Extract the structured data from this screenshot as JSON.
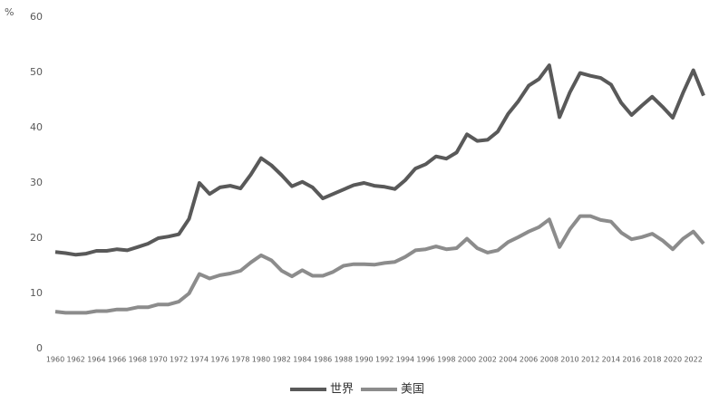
{
  "chart_data": {
    "type": "line",
    "y_unit": "%",
    "x": [
      1960,
      1961,
      1962,
      1963,
      1964,
      1965,
      1966,
      1967,
      1968,
      1969,
      1970,
      1971,
      1972,
      1973,
      1974,
      1975,
      1976,
      1977,
      1978,
      1979,
      1980,
      1981,
      1982,
      1983,
      1984,
      1985,
      1986,
      1987,
      1988,
      1989,
      1990,
      1991,
      1992,
      1993,
      1994,
      1995,
      1996,
      1997,
      1998,
      1999,
      2000,
      2001,
      2002,
      2003,
      2004,
      2005,
      2006,
      2007,
      2008,
      2009,
      2010,
      2011,
      2012,
      2013,
      2014,
      2015,
      2016,
      2017,
      2018,
      2019,
      2020,
      2021,
      2022,
      2023
    ],
    "series": [
      {
        "name": "世界",
        "color": "#595959",
        "values": [
          17.5,
          17.3,
          17.0,
          17.2,
          17.7,
          17.7,
          18.0,
          17.8,
          18.4,
          19.0,
          20.0,
          20.3,
          20.7,
          23.5,
          30.0,
          28.0,
          29.2,
          29.5,
          29.0,
          31.5,
          34.5,
          33.2,
          31.4,
          29.4,
          30.2,
          29.2,
          27.2,
          28.0,
          28.8,
          29.6,
          30.0,
          29.5,
          29.3,
          28.9,
          30.5,
          32.6,
          33.4,
          34.8,
          34.4,
          35.5,
          38.8,
          37.6,
          37.8,
          39.3,
          42.5,
          44.8,
          47.6,
          48.8,
          51.3,
          41.9,
          46.4,
          49.9,
          49.4,
          49.0,
          47.8,
          44.5,
          42.3,
          44.0,
          45.6,
          43.8,
          41.8,
          46.3,
          50.4,
          45.8
        ]
      },
      {
        "name": "美国",
        "color": "#8c8c8c",
        "values": [
          6.7,
          6.5,
          6.5,
          6.5,
          6.8,
          6.8,
          7.1,
          7.1,
          7.5,
          7.5,
          8.0,
          8.0,
          8.5,
          10.0,
          13.5,
          12.7,
          13.3,
          13.6,
          14.1,
          15.6,
          16.9,
          16.0,
          14.1,
          13.1,
          14.2,
          13.2,
          13.2,
          13.9,
          15.0,
          15.3,
          15.3,
          15.2,
          15.5,
          15.7,
          16.6,
          17.8,
          18.0,
          18.5,
          18.0,
          18.2,
          19.9,
          18.2,
          17.4,
          17.8,
          19.3,
          20.2,
          21.2,
          22.0,
          23.4,
          18.4,
          21.6,
          24.0,
          24.0,
          23.3,
          23.0,
          21.0,
          19.8,
          20.2,
          20.8,
          19.6,
          18.0,
          19.9,
          21.2,
          19.0
        ]
      }
    ],
    "xlim": [
      1960,
      2023
    ],
    "xticks": [
      1960,
      1962,
      1964,
      1966,
      1968,
      1970,
      1972,
      1974,
      1976,
      1978,
      1980,
      1982,
      1984,
      1986,
      1988,
      1990,
      1992,
      1994,
      1996,
      1998,
      2000,
      2002,
      2004,
      2006,
      2008,
      2010,
      2012,
      2014,
      2016,
      2018,
      2020,
      2022
    ],
    "ylim": [
      0,
      60
    ],
    "yticks": [
      0,
      10,
      20,
      30,
      40,
      50,
      60
    ],
    "grid": false,
    "legend": "bottom"
  }
}
